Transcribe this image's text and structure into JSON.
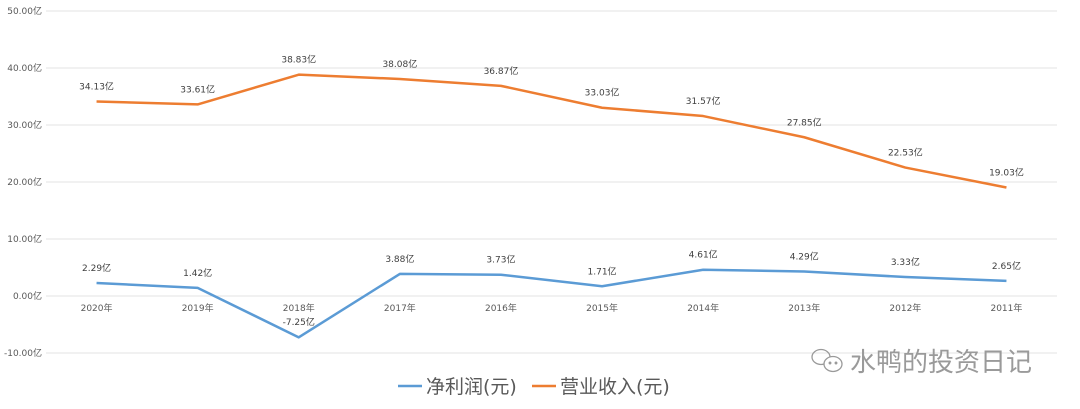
{
  "chart_data": {
    "type": "line",
    "title": "",
    "xlabel": "",
    "ylabel": "",
    "categories": [
      "2020年",
      "2019年",
      "2018年",
      "2017年",
      "2016年",
      "2015年",
      "2014年",
      "2013年",
      "2012年",
      "2011年"
    ],
    "ylim": [
      -10,
      50
    ],
    "yticks": [
      -10,
      0,
      10,
      20,
      30,
      40,
      50
    ],
    "ytick_labels": [
      "-10.00亿",
      "0.00亿",
      "10.00亿",
      "20.00亿",
      "30.00亿",
      "40.00亿",
      "50.00亿"
    ],
    "unit_suffix": "亿",
    "grid": true,
    "legend_position": "bottom",
    "series": [
      {
        "name": "净利润(元)",
        "color": "#5b9bd5",
        "values": [
          2.29,
          1.42,
          -7.25,
          3.88,
          3.73,
          1.71,
          4.61,
          4.29,
          3.33,
          2.65
        ],
        "labels": [
          "2.29亿",
          "1.42亿",
          "-7.25亿",
          "3.88亿",
          "3.73亿",
          "1.71亿",
          "4.61亿",
          "4.29亿",
          "3.33亿",
          "2.65亿"
        ]
      },
      {
        "name": "营业收入(元)",
        "color": "#ed7d31",
        "values": [
          34.13,
          33.61,
          38.83,
          38.08,
          36.87,
          33.03,
          31.57,
          27.85,
          22.53,
          19.03
        ],
        "labels": [
          "34.13亿",
          "33.61亿",
          "38.83亿",
          "38.08亿",
          "36.87亿",
          "33.03亿",
          "31.57亿",
          "27.85亿",
          "22.53亿",
          "19.03亿"
        ]
      }
    ]
  },
  "watermark": {
    "text": "水鸭的投资日记",
    "icon": "wechat-icon"
  }
}
